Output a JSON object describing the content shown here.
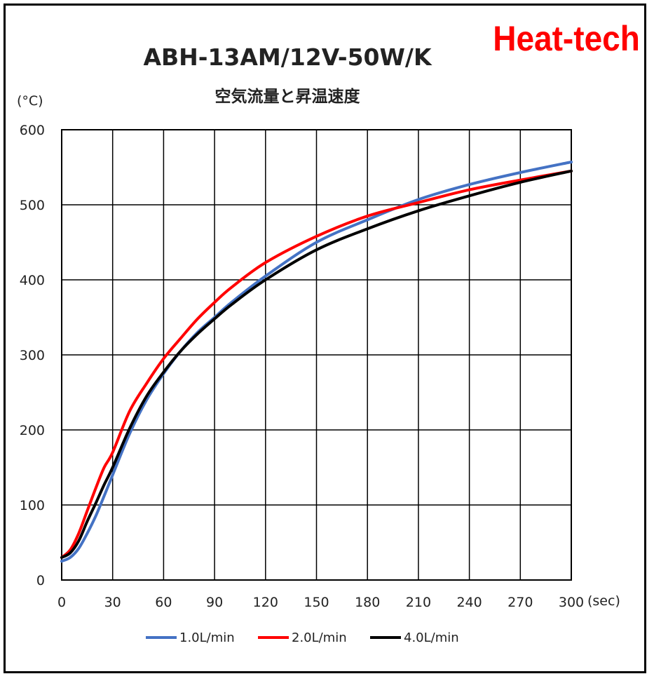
{
  "brand": "Heat-tech",
  "chart_data": {
    "type": "line",
    "title": "ABH-13AM/12V-50W/K",
    "subtitle": "空気流量と昇温速度",
    "ylabel": "(°C)",
    "xlabel": "(sec)",
    "xlim": [
      0,
      300
    ],
    "ylim": [
      0,
      600
    ],
    "xticks": [
      "0",
      "30",
      "60",
      "90",
      "120",
      "150",
      "180",
      "210",
      "240",
      "270",
      "300"
    ],
    "yticks": [
      "0",
      "100",
      "200",
      "300",
      "400",
      "500",
      "600"
    ],
    "grid": true,
    "legend_position": "bottom",
    "x": [
      0,
      5,
      10,
      15,
      20,
      25,
      30,
      40,
      50,
      60,
      70,
      80,
      90,
      100,
      120,
      150,
      180,
      210,
      240,
      270,
      300
    ],
    "series": [
      {
        "name": "1.0L/min",
        "color": "#4472c4",
        "values": [
          25,
          30,
          42,
          62,
          85,
          112,
          140,
          195,
          240,
          275,
          305,
          330,
          350,
          370,
          405,
          450,
          480,
          507,
          527,
          543,
          557
        ]
      },
      {
        "name": "2.0L/min",
        "color": "#ff0000",
        "values": [
          30,
          40,
          62,
          92,
          122,
          150,
          170,
          225,
          262,
          295,
          322,
          348,
          370,
          390,
          423,
          458,
          485,
          503,
          520,
          533,
          545
        ]
      },
      {
        "name": "4.0L/min",
        "color": "#000000",
        "values": [
          30,
          36,
          52,
          78,
          102,
          127,
          150,
          202,
          245,
          277,
          305,
          328,
          348,
          367,
          400,
          440,
          468,
          492,
          512,
          530,
          545
        ]
      }
    ]
  }
}
